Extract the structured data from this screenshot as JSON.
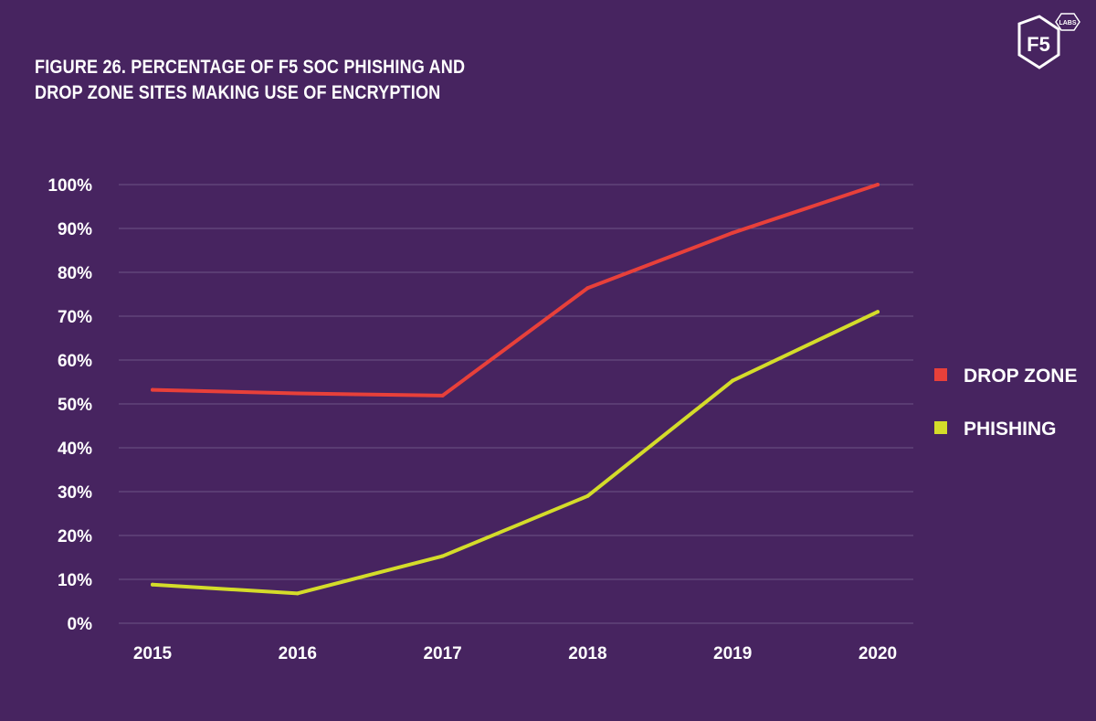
{
  "header": {
    "title_line1": "FIGURE 26. PERCENTAGE OF F5 SOC PHISHING AND",
    "title_line2": "DROP ZONE SITES MAKING USE OF ENCRYPTION"
  },
  "logo": {
    "main_text": "F5",
    "badge_text": "LABS",
    "icon": "f5-labs-hexagon-logo"
  },
  "colors": {
    "background": "#472460",
    "gridline": "#6e5586",
    "drop_zone": "#e8403a",
    "phishing": "#d4dc2a"
  },
  "chart_data": {
    "type": "line",
    "title": "FIGURE 26. PERCENTAGE OF F5 SOC PHISHING AND DROP ZONE SITES MAKING USE OF ENCRYPTION",
    "x": [
      "2015",
      "2016",
      "2017",
      "2018",
      "2019",
      "2020"
    ],
    "series": [
      {
        "name": "DROP ZONE",
        "color": "#e8403a",
        "values": [
          53.2,
          52.4,
          51.9,
          76.4,
          89.0,
          100.0
        ]
      },
      {
        "name": "PHISHING",
        "color": "#d4dc2a",
        "values": [
          8.8,
          6.8,
          15.3,
          29.0,
          55.3,
          71.0
        ]
      }
    ],
    "ylim": [
      0,
      100
    ],
    "yticks": [
      "0%",
      "10%",
      "20%",
      "30%",
      "40%",
      "50%",
      "60%",
      "70%",
      "80%",
      "90%",
      "100%"
    ],
    "xlabel": "",
    "ylabel": "",
    "grid": true,
    "legend_position": "right"
  }
}
